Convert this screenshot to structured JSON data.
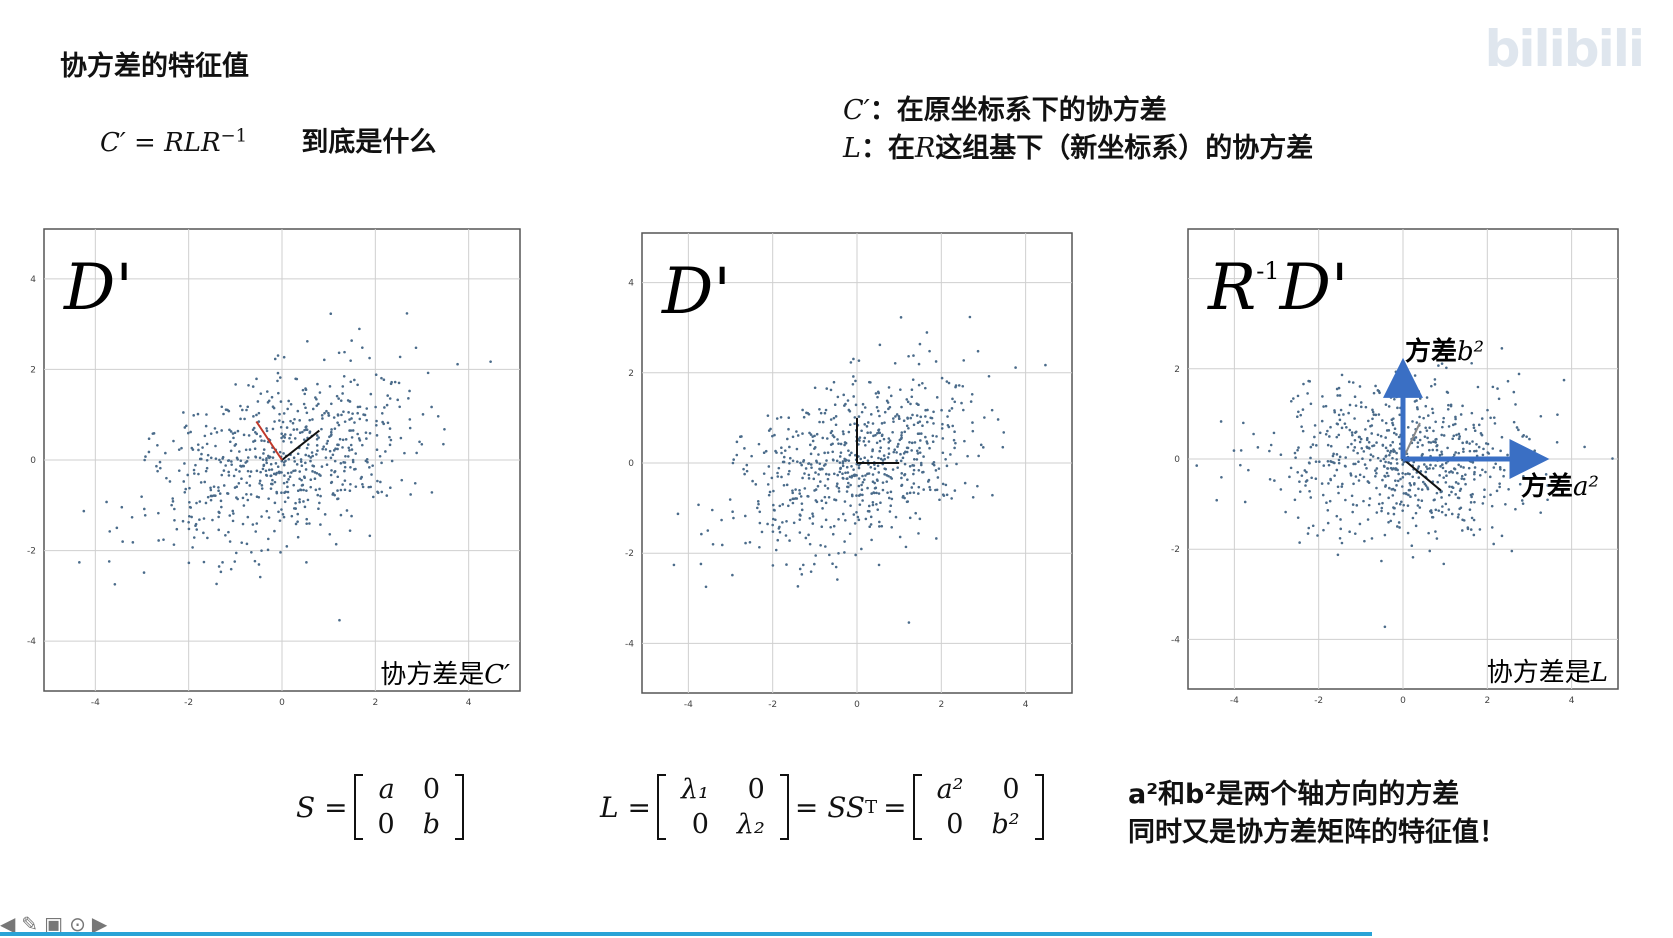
{
  "title": "协方差的特征值",
  "formula": {
    "lhs": "C′ = RLR",
    "sup": "−1",
    "question": "到底是什么"
  },
  "definitions": {
    "line1_var": "C′",
    "line1_text": "：在原坐标系下的协方差",
    "line2_var": "L",
    "line2_pre": "：在",
    "line2_R": "R",
    "line2_text": "这组基下（新坐标系）的协方差"
  },
  "watermark": "bilibili",
  "panels": [
    {
      "label": "D'",
      "prefix": "",
      "caption": "协方差是",
      "caption_var": "C′",
      "x_ticks": [
        "-4",
        "-2",
        "0",
        "2",
        "4"
      ],
      "y_ticks": [
        "4",
        "2",
        "0",
        "-2",
        "-4"
      ]
    },
    {
      "label": "D'",
      "prefix": "",
      "caption": "",
      "caption_var": "",
      "x_ticks": [
        "-4",
        "-2",
        "0",
        "2",
        "4"
      ],
      "y_ticks": [
        "4",
        "2",
        "0",
        "-2",
        "-4"
      ]
    },
    {
      "label": "D'",
      "prefix": "R",
      "prefix_sup": "-1",
      "caption": "协方差是",
      "caption_var": "L",
      "x_ticks": [
        "-4",
        "-2",
        "0",
        "2",
        "4"
      ],
      "y_ticks": [
        "2",
        "0",
        "-2",
        "-4"
      ],
      "arrow_up_label": "方差",
      "arrow_up_var": "b",
      "arrow_right_label": "方差",
      "arrow_right_var": "a"
    }
  ],
  "matrices": {
    "S_lhs": "S =",
    "S": [
      [
        "a",
        "0"
      ],
      [
        "0",
        "b"
      ]
    ],
    "L_lhs": "L =",
    "L": [
      [
        "λ₁",
        "0"
      ],
      [
        "0",
        "λ₂"
      ]
    ],
    "mid": "= SS",
    "mid_sup": "T",
    "eq": "=",
    "AB": [
      [
        "a²",
        "0"
      ],
      [
        "0",
        "b²"
      ]
    ]
  },
  "note": {
    "line1": "a²和b²是两个轴方向的方差",
    "line2": "同时又是协方差矩阵的特征值！"
  },
  "toolbar_icons": [
    "prev-arrow-icon",
    "pen-icon",
    "slide-icon",
    "more-icon",
    "next-arrow-icon"
  ],
  "progress": 0.82,
  "colors": {
    "point": "#4a6b8a",
    "arrow": "#3a6fc4",
    "red_axis": "#c0392b",
    "progress": "#29a3d6"
  }
}
